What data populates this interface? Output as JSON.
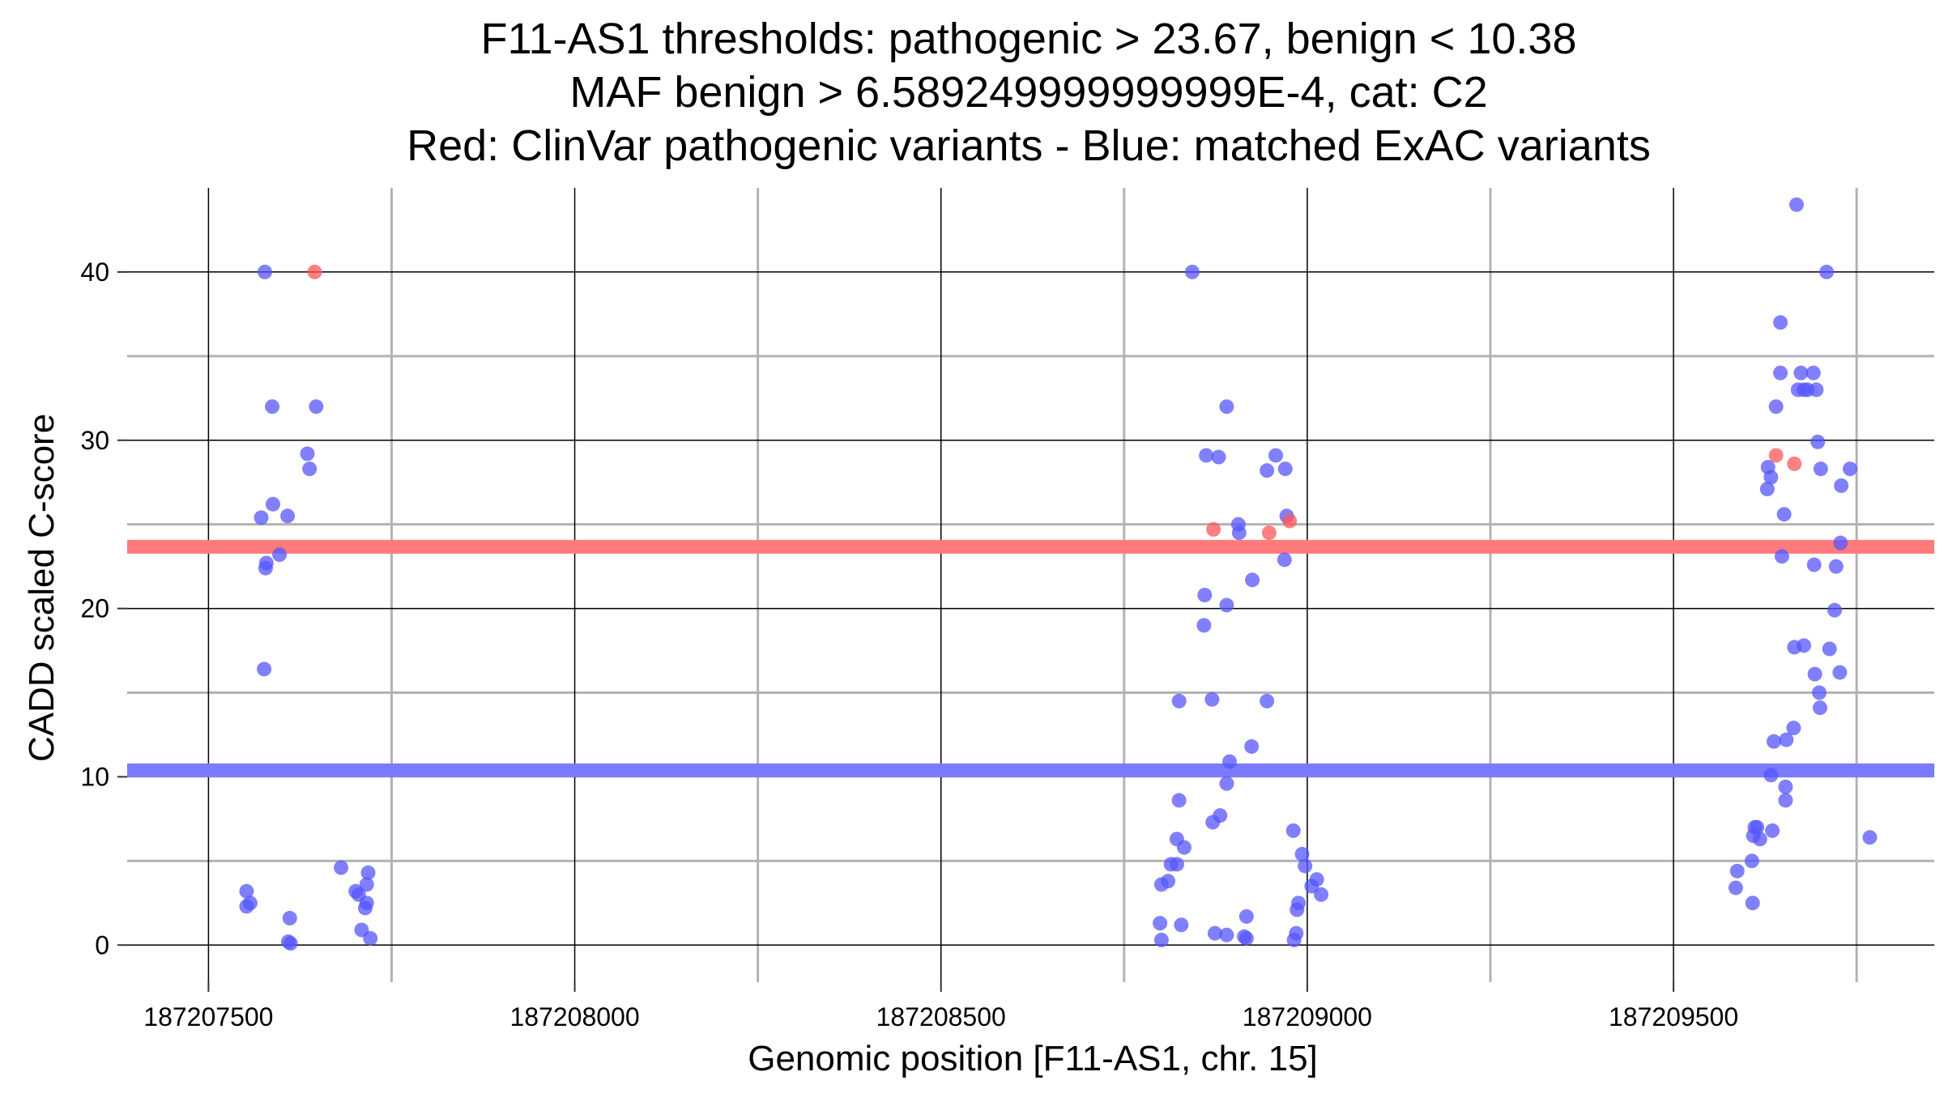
{
  "chart_data": {
    "type": "scatter",
    "title_lines": [
      "F11-AS1 thresholds: pathogenic > 23.67, benign < 10.38",
      "MAF benign > 6.589249999999999E-4, cat: C2",
      "Red: ClinVar pathogenic variants - Blue: matched ExAC variants"
    ],
    "xlabel": "Genomic position [F11-AS1, chr. 15]",
    "ylabel": "CADD scaled C-score",
    "xlim": [
      187207389,
      187209856
    ],
    "ylim": [
      -2.2,
      45
    ],
    "x_major_ticks": [
      187207500,
      187208000,
      187208500,
      187209000,
      187209500
    ],
    "x_tick_labels": [
      "187207500",
      "187208000",
      "187208500",
      "187209000",
      "187209500"
    ],
    "x_minor_ticks": [
      187207750,
      187208250,
      187208750,
      187209250,
      187209750
    ],
    "y_major_ticks": [
      0,
      10,
      20,
      30,
      40
    ],
    "y_tick_labels": [
      "0",
      "10",
      "20",
      "30",
      "40"
    ],
    "y_minor_ticks": [
      5,
      15,
      25,
      35
    ],
    "thresholds": [
      {
        "name": "pathogenic",
        "value": 23.67,
        "color": "#ff7b7b"
      },
      {
        "name": "benign",
        "value": 10.38,
        "color": "#7b7bff"
      }
    ],
    "series": [
      {
        "name": "ClinVar pathogenic variants",
        "color": "#ff5555",
        "points": [
          [
            187207645,
            40
          ],
          [
            187208872,
            24.7
          ],
          [
            187208948,
            24.5
          ],
          [
            187208976,
            25.2
          ],
          [
            187209640,
            29.1
          ],
          [
            187209665,
            28.6
          ]
        ]
      },
      {
        "name": "matched ExAC variants",
        "color": "#5555ff",
        "points": [
          [
            187207577,
            40
          ],
          [
            187207587,
            32
          ],
          [
            187207647,
            32
          ],
          [
            187207635,
            29.2
          ],
          [
            187207638,
            28.3
          ],
          [
            187207588,
            26.2
          ],
          [
            187207572,
            25.4
          ],
          [
            187207608,
            25.5
          ],
          [
            187207597,
            23.2
          ],
          [
            187207579,
            22.7
          ],
          [
            187207578,
            22.4
          ],
          [
            187207576,
            16.4
          ],
          [
            187207681,
            4.6
          ],
          [
            187207701,
            3.2
          ],
          [
            187207718,
            4.3
          ],
          [
            187207716,
            3.6
          ],
          [
            187207705,
            3.0
          ],
          [
            187207716,
            2.5
          ],
          [
            187207714,
            2.2
          ],
          [
            187207552,
            3.2
          ],
          [
            187207557,
            2.5
          ],
          [
            187207552,
            2.3
          ],
          [
            187207611,
            1.6
          ],
          [
            187207709,
            0.9
          ],
          [
            187207721,
            0.4
          ],
          [
            187207609,
            0.2
          ],
          [
            187207612,
            0.1
          ],
          [
            187208843,
            40
          ],
          [
            187208890,
            32
          ],
          [
            187208862,
            29.1
          ],
          [
            187208879,
            29.0
          ],
          [
            187208957,
            29.1
          ],
          [
            187208945,
            28.2
          ],
          [
            187208970,
            28.3
          ],
          [
            187208972,
            25.5
          ],
          [
            187208906,
            25.0
          ],
          [
            187208907,
            24.5
          ],
          [
            187208969,
            22.9
          ],
          [
            187208925,
            21.7
          ],
          [
            187208860,
            20.8
          ],
          [
            187208890,
            20.2
          ],
          [
            187208859,
            19.0
          ],
          [
            187208870,
            14.6
          ],
          [
            187208825,
            14.5
          ],
          [
            187208945,
            14.5
          ],
          [
            187208924,
            11.8
          ],
          [
            187208894,
            10.9
          ],
          [
            187208890,
            9.6
          ],
          [
            187208825,
            8.6
          ],
          [
            187208881,
            7.7
          ],
          [
            187208871,
            7.3
          ],
          [
            187208981,
            6.8
          ],
          [
            187208822,
            6.3
          ],
          [
            187208832,
            5.8
          ],
          [
            187208993,
            5.4
          ],
          [
            187208814,
            4.8
          ],
          [
            187208822,
            4.8
          ],
          [
            187208997,
            4.7
          ],
          [
            187209013,
            3.9
          ],
          [
            187209006,
            3.5
          ],
          [
            187208801,
            3.6
          ],
          [
            187208810,
            3.8
          ],
          [
            187209019,
            3.0
          ],
          [
            187208988,
            2.5
          ],
          [
            187208986,
            2.1
          ],
          [
            187208917,
            1.7
          ],
          [
            187208799,
            1.3
          ],
          [
            187208828,
            1.2
          ],
          [
            187208874,
            0.7
          ],
          [
            187208890,
            0.6
          ],
          [
            187208914,
            0.5
          ],
          [
            187208917,
            0.4
          ],
          [
            187208985,
            0.7
          ],
          [
            187208801,
            0.3
          ],
          [
            187208982,
            0.3
          ],
          [
            187209668,
            44
          ],
          [
            187209709,
            40
          ],
          [
            187209646,
            37
          ],
          [
            187209646,
            34
          ],
          [
            187209674,
            34
          ],
          [
            187209691,
            34
          ],
          [
            187209670,
            33
          ],
          [
            187209678,
            33
          ],
          [
            187209683,
            33
          ],
          [
            187209695,
            33
          ],
          [
            187209640,
            32
          ],
          [
            187209697,
            29.9
          ],
          [
            187209629,
            28.4
          ],
          [
            187209701,
            28.3
          ],
          [
            187209741,
            28.3
          ],
          [
            187209633,
            27.8
          ],
          [
            187209628,
            27.1
          ],
          [
            187209729,
            27.3
          ],
          [
            187209651,
            25.6
          ],
          [
            187209728,
            23.9
          ],
          [
            187209648,
            23.1
          ],
          [
            187209692,
            22.6
          ],
          [
            187209722,
            22.5
          ],
          [
            187209720,
            19.9
          ],
          [
            187209665,
            17.7
          ],
          [
            187209678,
            17.8
          ],
          [
            187209713,
            17.6
          ],
          [
            187209727,
            16.2
          ],
          [
            187209693,
            16.1
          ],
          [
            187209699,
            15.0
          ],
          [
            187209700,
            14.1
          ],
          [
            187209664,
            12.9
          ],
          [
            187209637,
            12.1
          ],
          [
            187209654,
            12.2
          ],
          [
            187209633,
            10.1
          ],
          [
            187209653,
            9.4
          ],
          [
            187209653,
            8.6
          ],
          [
            187209611,
            7.0
          ],
          [
            187209614,
            7.0
          ],
          [
            187209635,
            6.8
          ],
          [
            187209609,
            6.5
          ],
          [
            187209618,
            6.3
          ],
          [
            187209768,
            6.4
          ],
          [
            187209607,
            5.0
          ],
          [
            187209587,
            4.4
          ],
          [
            187209585,
            3.4
          ],
          [
            187209608,
            2.5
          ]
        ]
      }
    ]
  }
}
